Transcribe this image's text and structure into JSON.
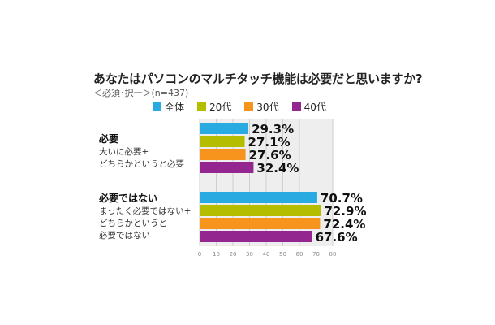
{
  "title": "あなたはパソコンのマルチタッチ機能は必要だと思いますか?",
  "subtitle": "＜必須･択一＞(n=437)",
  "chart_data": {
    "type": "bar",
    "orientation": "horizontal",
    "title": "あなたはパソコンのマルチタッチ機能は必要だと思いますか?",
    "subtitle": "＜必須･択一＞(n=437)",
    "categories": [
      {
        "title": "必要",
        "desc": [
          "大いに必要+",
          "どちらかというと必要"
        ]
      },
      {
        "title": "必要ではない",
        "desc": [
          "まったく必要ではない+",
          "どちらかというと",
          "必要ではない"
        ]
      }
    ],
    "series": [
      {
        "name": "全体",
        "color": "#29abe2",
        "values": [
          29.3,
          70.7
        ],
        "labels": [
          "29.3%",
          "70.7%"
        ]
      },
      {
        "name": "20代",
        "color": "#b5bd00",
        "values": [
          27.1,
          72.9
        ],
        "labels": [
          "27.1%",
          "72.9%"
        ]
      },
      {
        "name": "30代",
        "color": "#f7941d",
        "values": [
          27.6,
          72.4
        ],
        "labels": [
          "27.6%",
          "72.4%"
        ]
      },
      {
        "name": "40代",
        "color": "#93278f",
        "values": [
          32.4,
          67.6
        ],
        "labels": [
          "32.4%",
          "67.6%"
        ]
      }
    ],
    "xlim": [
      0,
      80
    ],
    "xticks": [
      "0",
      "10",
      "20",
      "30",
      "40",
      "50",
      "60",
      "70",
      "80"
    ],
    "grid": true,
    "legend_position": "top"
  }
}
